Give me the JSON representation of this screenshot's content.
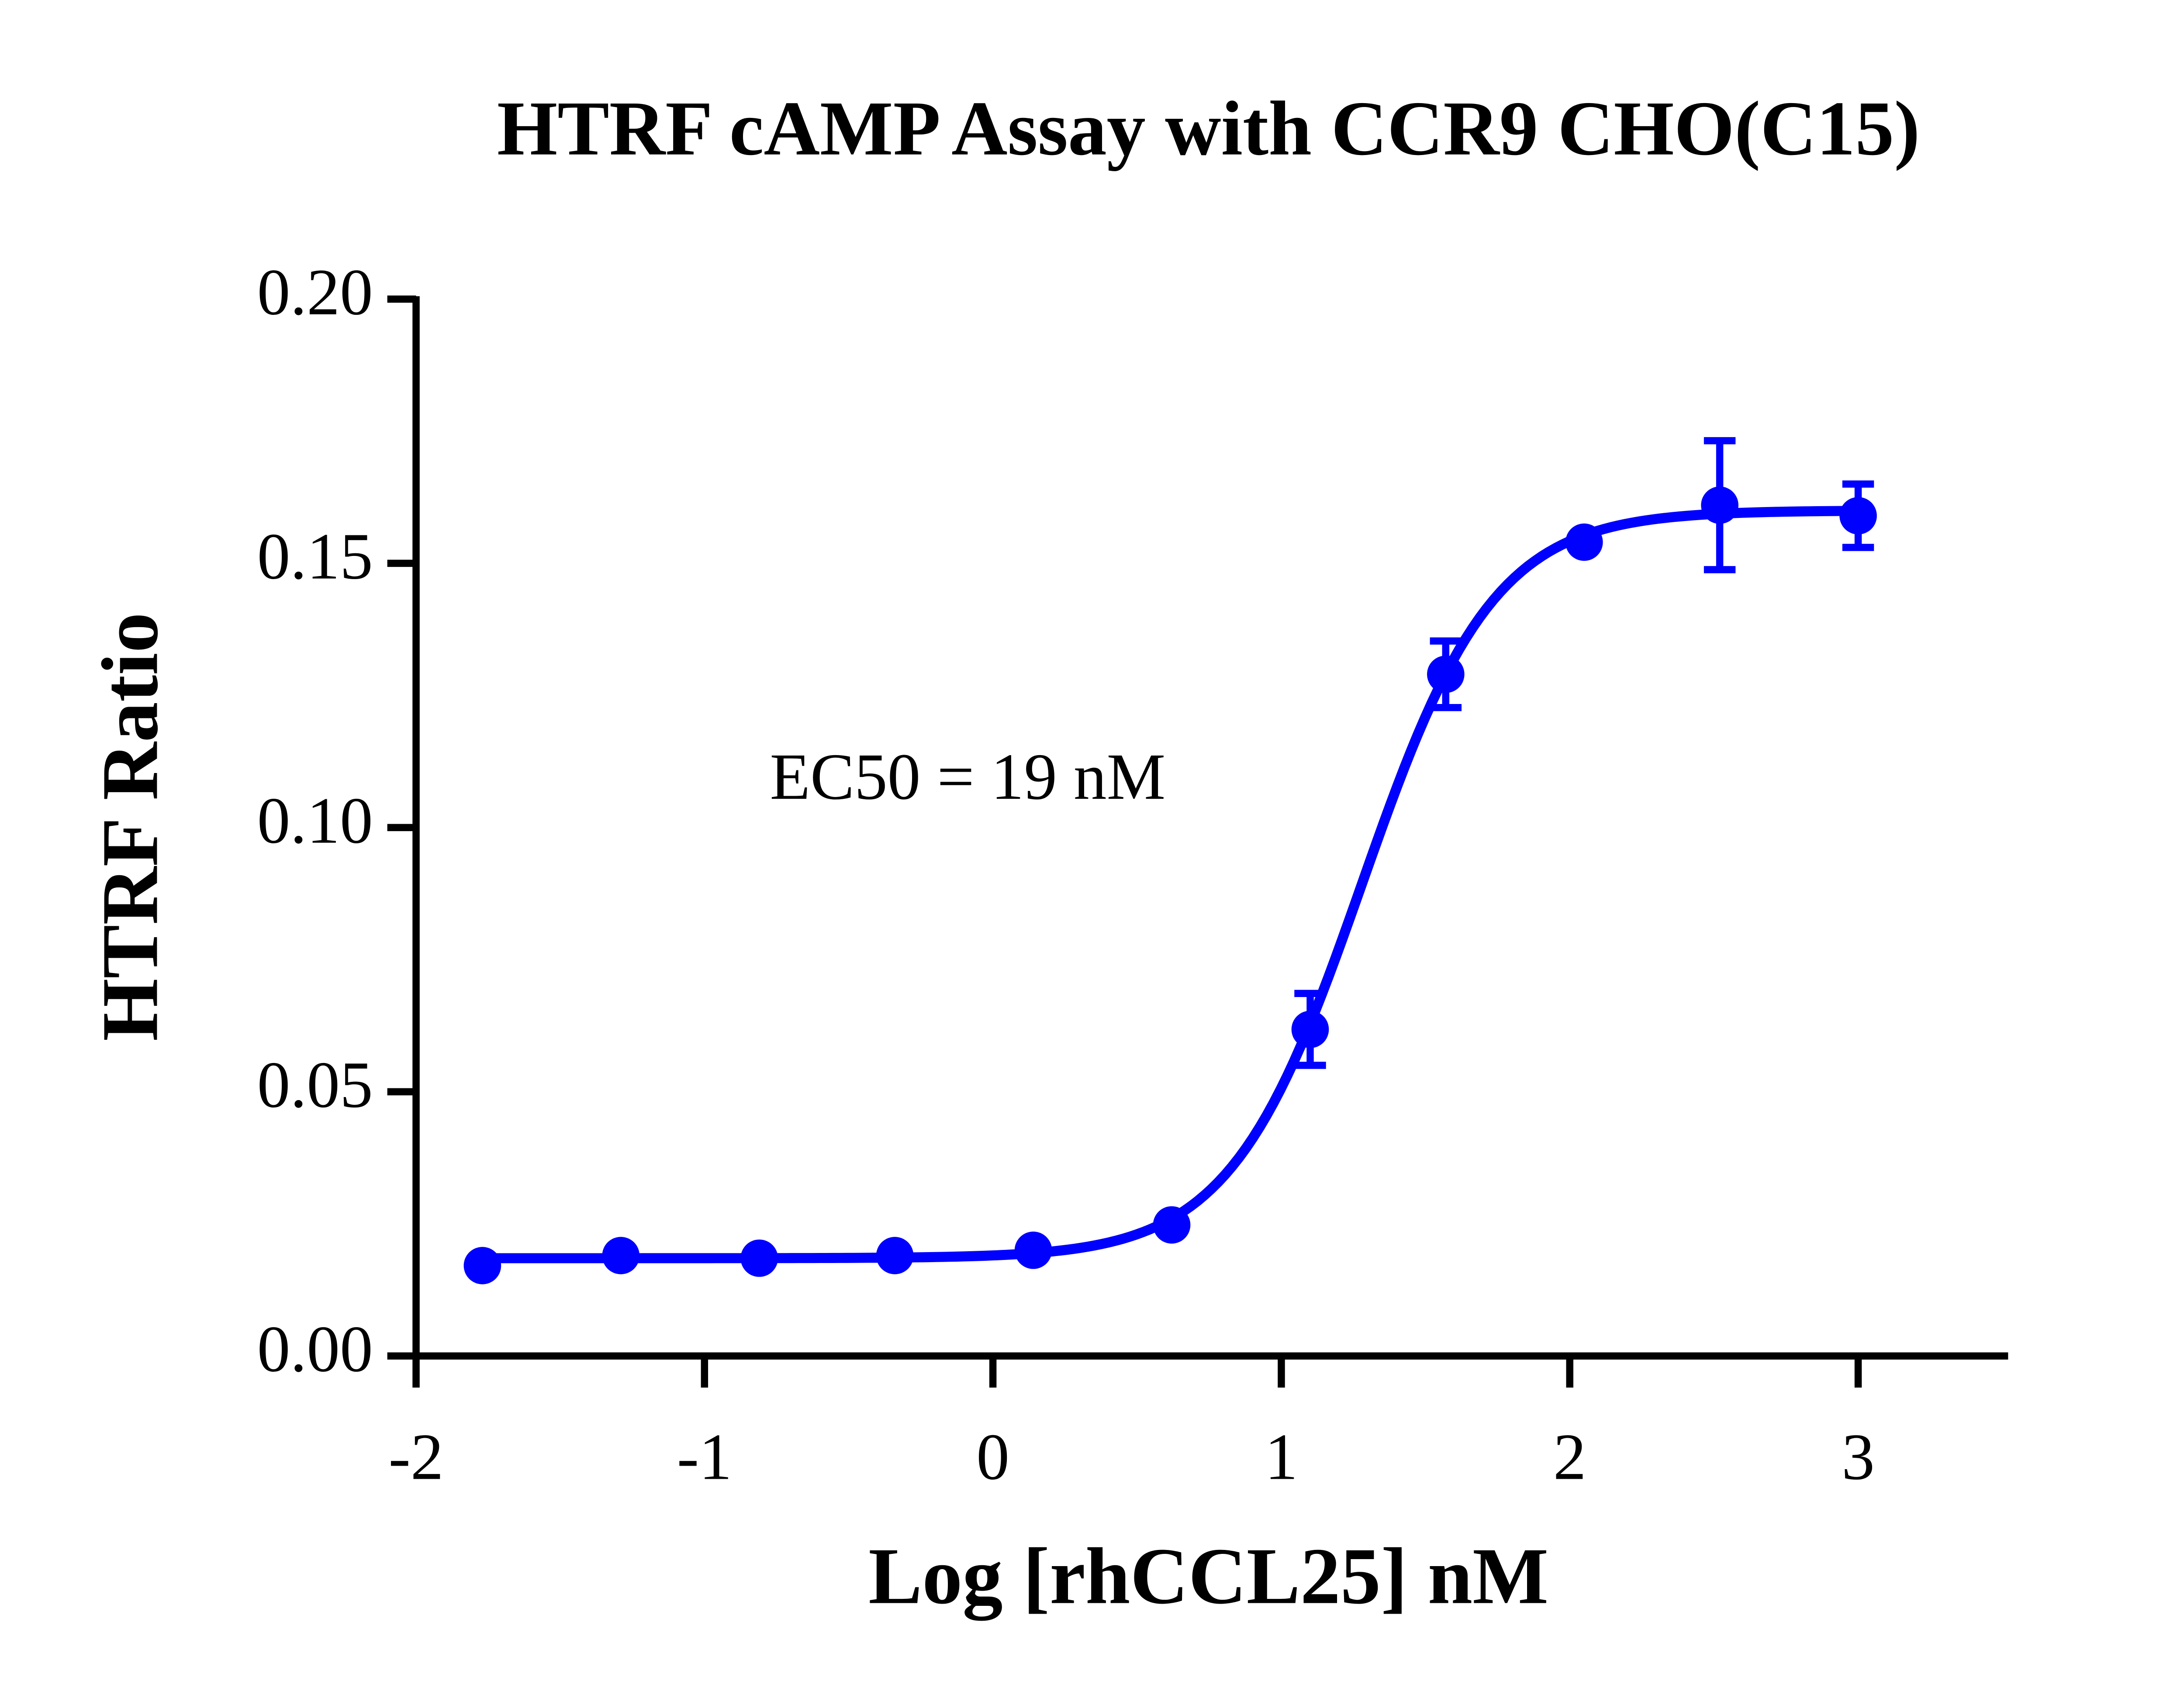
{
  "chart_data": {
    "type": "dose-response",
    "title": "HTRF cAMP Assay with CCR9 CHO(C15)",
    "x_label": "Log [rhCCL25] nM",
    "y_label": "HTRF Ratio",
    "annotation": "EC50 = 19 nM",
    "color": "#0000ff",
    "x": [
      -1.77,
      -1.29,
      -0.81,
      -0.34,
      0.14,
      0.62,
      1.1,
      1.57,
      2.05,
      2.52,
      3.0
    ],
    "values": [
      0.0171,
      0.019,
      0.0185,
      0.019,
      0.02,
      0.0248,
      0.0618,
      0.129,
      0.154,
      0.161,
      0.159
    ],
    "errors": [
      null,
      null,
      null,
      null,
      null,
      null,
      0.0068,
      0.0063,
      null,
      0.0122,
      0.006
    ],
    "fit": {
      "bottom": 0.0185,
      "top": 0.16,
      "logec50": 1.279,
      "hill": 1.9
    },
    "xlim": [
      -2,
      3.5
    ],
    "xticks": [
      -2,
      -1,
      0,
      1,
      2,
      3
    ],
    "ylim": [
      0,
      0.2
    ],
    "yticks": [
      {
        "value": 0,
        "label": "0.00"
      },
      {
        "value": 0.05,
        "label": "0.05"
      },
      {
        "value": 0.1,
        "label": "0.10"
      },
      {
        "value": 0.15,
        "label": "0.15"
      },
      {
        "value": 0.2,
        "label": "0.20"
      }
    ]
  }
}
